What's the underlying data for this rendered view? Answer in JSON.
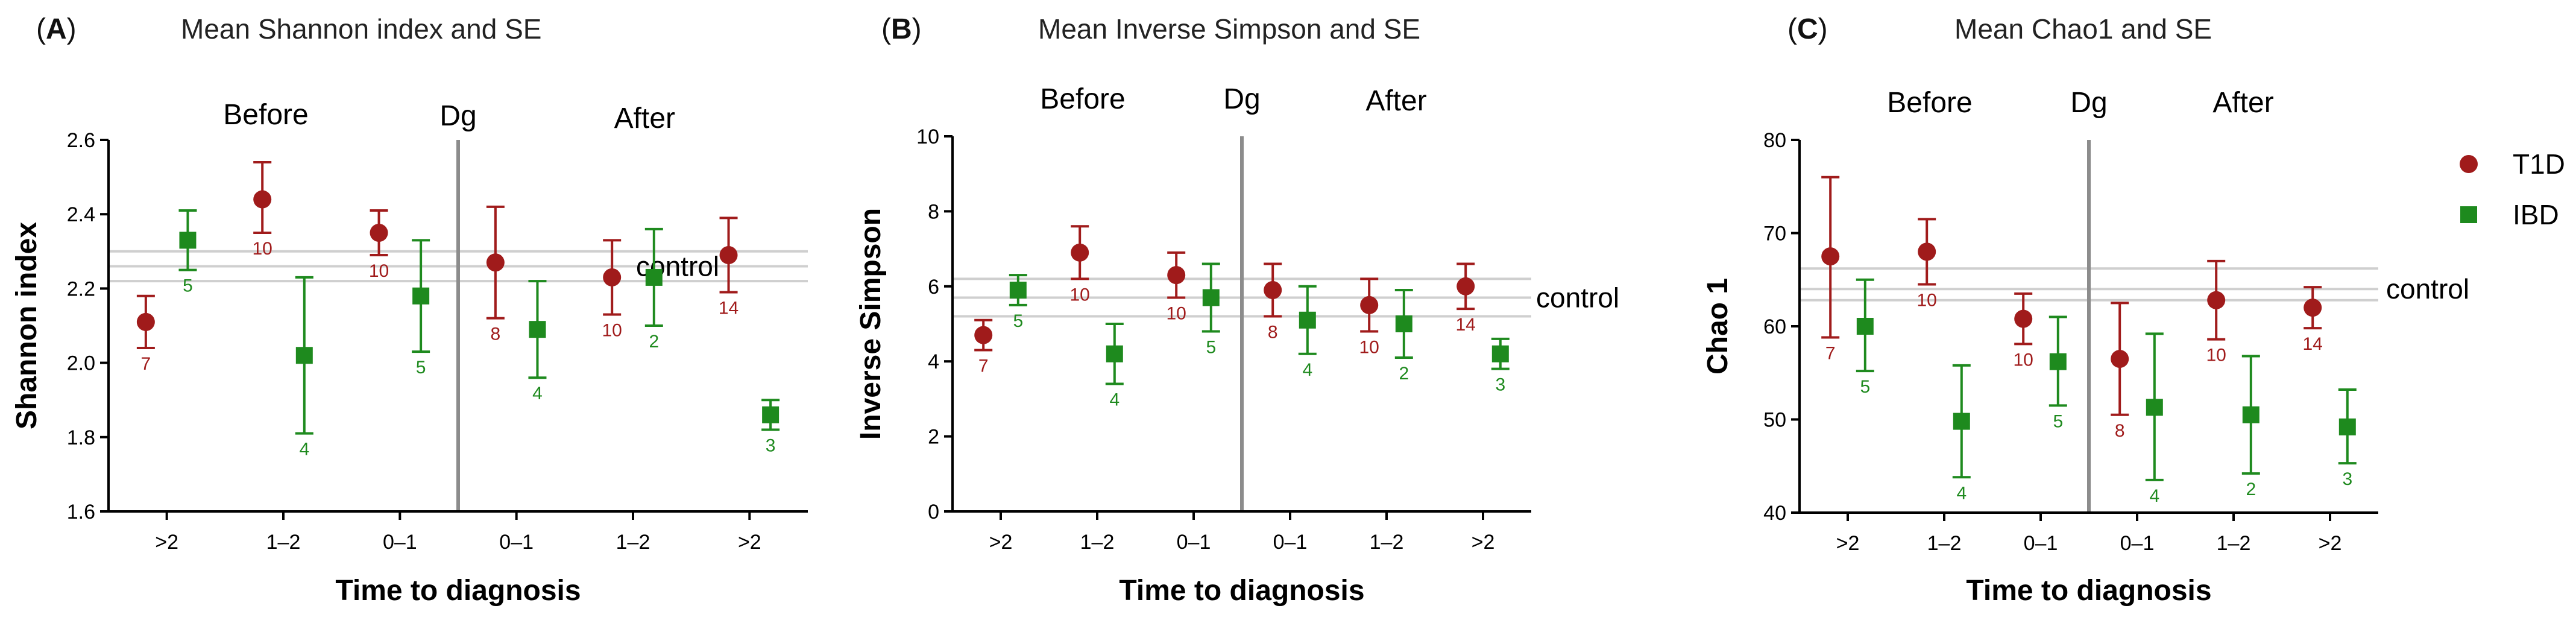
{
  "colors": {
    "T1D": "#a01b1b",
    "IBD": "#1e8a1e",
    "control": "#cfcfcf",
    "divider": "#8c8c8c",
    "axis": "#000000"
  },
  "legend": [
    {
      "name": "T1D",
      "marker": "circle"
    },
    {
      "name": "IBD",
      "marker": "square"
    }
  ],
  "chart_data": [
    {
      "type": "scatter",
      "panel": "A",
      "panel_prefix": "(",
      "panel_suffix": ")",
      "title": "Mean Shannon index and SE",
      "xlabel": "Time to diagnosis",
      "ylabel": "Shannon index",
      "ylim": [
        1.6,
        2.6
      ],
      "yticks": [
        "1.6",
        "1.8",
        "2.0",
        "2.2",
        "2.4",
        "2.6"
      ],
      "yticks_values": [
        1.6,
        1.8,
        2.0,
        2.2,
        2.4,
        2.6
      ],
      "categories": [
        ">2",
        "1–2",
        "0–1",
        "0–1",
        "1–2",
        ">2"
      ],
      "period_labels": {
        "before": "Before",
        "divider": "Dg",
        "after": "After"
      },
      "control_label": "control",
      "control_lines": [
        2.22,
        2.26,
        2.3
      ],
      "series": [
        {
          "name": "T1D",
          "values": [
            2.11,
            2.44,
            2.35,
            2.27,
            2.23,
            2.29
          ],
          "lower": [
            2.04,
            2.35,
            2.29,
            2.12,
            2.13,
            2.19
          ],
          "upper": [
            2.18,
            2.54,
            2.41,
            2.42,
            2.33,
            2.39
          ],
          "n": [
            "7",
            "10",
            "10",
            "8",
            "10",
            "14"
          ]
        },
        {
          "name": "IBD",
          "values": [
            2.33,
            2.02,
            2.18,
            2.09,
            2.23,
            1.86
          ],
          "lower": [
            2.25,
            1.81,
            2.03,
            1.96,
            2.1,
            1.82
          ],
          "upper": [
            2.41,
            2.23,
            2.33,
            2.22,
            2.36,
            1.9
          ],
          "n": [
            "5",
            "4",
            "5",
            "4",
            "2",
            "3"
          ]
        }
      ]
    },
    {
      "type": "scatter",
      "panel": "B",
      "panel_prefix": "(",
      "panel_suffix": ")",
      "title": "Mean Inverse Simpson and SE",
      "xlabel": "Time to diagnosis",
      "ylabel": "Inverse Simpson",
      "ylim": [
        0,
        10
      ],
      "yticks": [
        "0",
        "2",
        "4",
        "6",
        "8",
        "10"
      ],
      "yticks_values": [
        0,
        2,
        4,
        6,
        8,
        10
      ],
      "categories": [
        ">2",
        "1–2",
        "0–1",
        "0–1",
        "1–2",
        ">2"
      ],
      "period_labels": {
        "before": "Before",
        "divider": "Dg",
        "after": "After"
      },
      "control_label": "control",
      "control_lines": [
        5.2,
        5.7,
        6.2
      ],
      "series": [
        {
          "name": "T1D",
          "values": [
            4.7,
            6.9,
            6.3,
            5.9,
            5.5,
            6.0
          ],
          "lower": [
            4.3,
            6.2,
            5.7,
            5.2,
            4.8,
            5.4
          ],
          "upper": [
            5.1,
            7.6,
            6.9,
            6.6,
            6.2,
            6.6
          ],
          "n": [
            "7",
            "10",
            "10",
            "8",
            "10",
            "14"
          ]
        },
        {
          "name": "IBD",
          "values": [
            5.9,
            4.2,
            5.7,
            5.1,
            5.0,
            4.2
          ],
          "lower": [
            5.5,
            3.4,
            4.8,
            4.2,
            4.1,
            3.8
          ],
          "upper": [
            6.3,
            5.0,
            6.6,
            6.0,
            5.9,
            4.6
          ],
          "n": [
            "5",
            "4",
            "5",
            "4",
            "2",
            "3"
          ]
        }
      ]
    },
    {
      "type": "scatter",
      "panel": "C",
      "panel_prefix": "(",
      "panel_suffix": ")",
      "title": "Mean Chao1 and SE",
      "xlabel": "Time to diagnosis",
      "ylabel": "Chao 1",
      "ylim": [
        40,
        80
      ],
      "yticks": [
        "40",
        "50",
        "60",
        "70",
        "80"
      ],
      "yticks_values": [
        40,
        50,
        60,
        70,
        80
      ],
      "categories": [
        ">2",
        "1–2",
        "0–1",
        "0–1",
        "1–2",
        ">2"
      ],
      "period_labels": {
        "before": "Before",
        "divider": "Dg",
        "after": "After"
      },
      "control_label": "control",
      "control_lines": [
        62.8,
        64.0,
        66.2
      ],
      "series": [
        {
          "name": "T1D",
          "values": [
            67.5,
            68.0,
            60.8,
            56.5,
            62.8,
            62.0
          ],
          "lower": [
            58.8,
            64.5,
            58.1,
            50.5,
            58.6,
            59.8
          ],
          "upper": [
            76.0,
            71.5,
            63.5,
            62.5,
            67.0,
            64.2
          ],
          "n": [
            "7",
            "10",
            "10",
            "8",
            "10",
            "14"
          ]
        },
        {
          "name": "IBD",
          "values": [
            60.0,
            49.8,
            56.2,
            51.3,
            50.5,
            49.2
          ],
          "lower": [
            55.2,
            43.8,
            51.5,
            43.5,
            44.2,
            45.3
          ],
          "upper": [
            65.0,
            55.8,
            61.0,
            59.2,
            56.8,
            53.2
          ],
          "n": [
            "5",
            "4",
            "5",
            "4",
            "2",
            "3"
          ]
        }
      ]
    }
  ]
}
